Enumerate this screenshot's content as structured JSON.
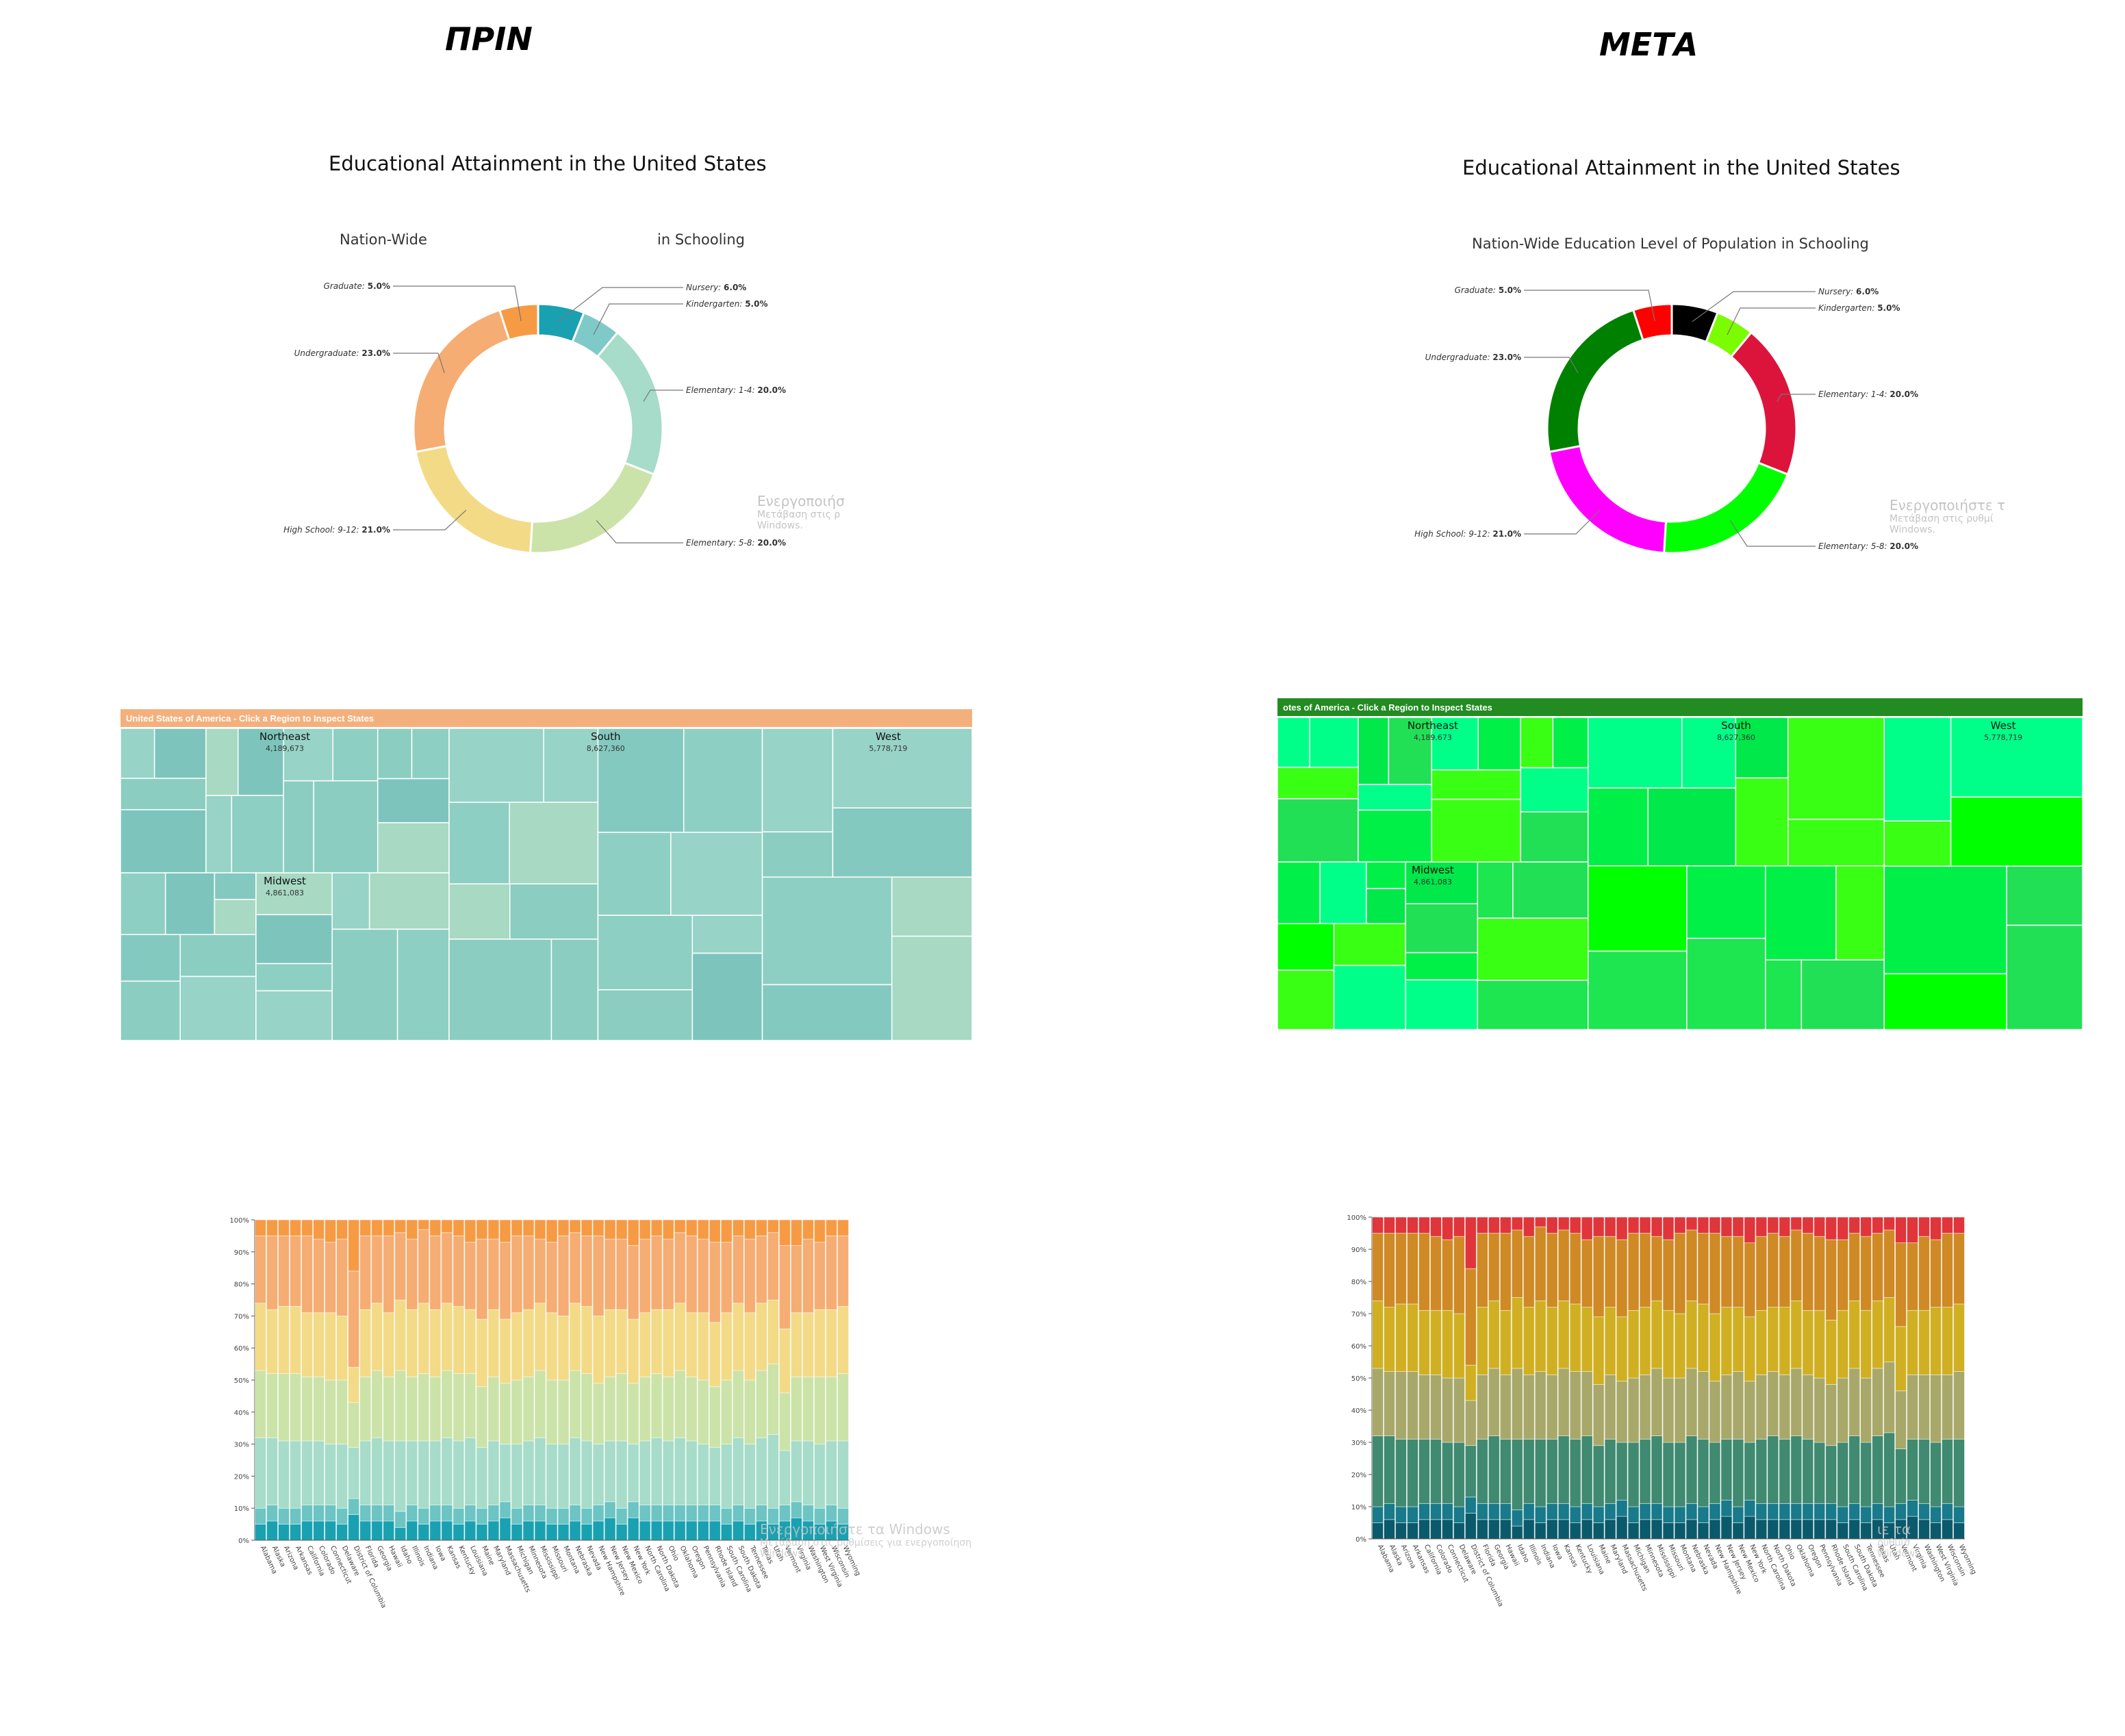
{
  "panels": [
    {
      "id": "before",
      "label": "ΠΡΙΝ",
      "donut": {
        "title": "Educational Attainment in the United States",
        "subtitle_left": "Nation-Wide",
        "subtitle_right": "in Schooling"
      },
      "watermark": {
        "line1": "Ενεργοποιήσ",
        "line2": "Μετάβαση στις ρ",
        "line3": "Windows."
      },
      "treemap": {
        "header": "United States of America - Click a Region to Inspect States",
        "header_color": "#f4b07c"
      },
      "stacked": {
        "watermark": {
          "line1": "Ενεργοποιήστε τα Windows",
          "line2": "Μετάβαση στις ρυθμίσεις για ενεργοποίηση",
          "line3": "Windows."
        }
      },
      "colors": {
        "nursery": "#1aa1b1",
        "kindergarten": "#7fcac8",
        "elementary14": "#a6dcc9",
        "elementary58": "#cbe3a8",
        "highschool": "#f3da87",
        "undergraduate": "#f5ad73",
        "graduate": "#f69b44"
      }
    },
    {
      "id": "after",
      "label": "ΜΕΤΑ",
      "donut": {
        "title": "Educational Attainment in the United States",
        "subtitle": "Nation-Wide Education Level of Population in Schooling"
      },
      "watermark": {
        "line1": "Ενεργοποιήστε τ",
        "line2": "Μετάβαση στις ρυθμί",
        "line3": "Windows."
      },
      "treemap": {
        "header": "otes of America - Click a Region to Inspect States",
        "header_color": "#228b22"
      },
      "stacked": {
        "watermark": {
          "line1": "ιε τα",
          "line2": "ρυθμίσ",
          "line3": "Windows."
        }
      },
      "colors": {
        "nursery": "#000000",
        "kindergarten": "#7cfc00",
        "elementary14": "#dc143c",
        "elementary58": "#00ff00",
        "highschool": "#ff00ff",
        "undergraduate": "#008000",
        "graduate": "#ff0000"
      }
    }
  ],
  "chart_data": [
    {
      "type": "pie",
      "title": "Educational Attainment in the United States",
      "subtitle": "Nation-Wide Education Level of Population in Schooling",
      "slices": [
        {
          "label": "Nursery",
          "value": 6.0,
          "display": "6.0%"
        },
        {
          "label": "Kindergarten",
          "value": 5.0,
          "display": "5.0%"
        },
        {
          "label": "Elementary: 1-4",
          "value": 20.0,
          "display": "20.0%"
        },
        {
          "label": "Elementary: 5-8",
          "value": 20.0,
          "display": "20.0%"
        },
        {
          "label": "High School: 9-12",
          "value": 21.0,
          "display": "21.0%"
        },
        {
          "label": "Undergraduate",
          "value": 23.0,
          "display": "23.0%"
        },
        {
          "label": "Graduate",
          "value": 5.0,
          "display": "5.0%"
        }
      ]
    },
    {
      "type": "treemap",
      "header": "United States of America - Click a Region to Inspect States",
      "regions": [
        {
          "name": "Northeast",
          "value": 4189673,
          "display": "4,189,673"
        },
        {
          "name": "Midwest",
          "value": 4861083,
          "display": "4,861,083"
        },
        {
          "name": "South",
          "value": 8627360,
          "display": "8,627,360"
        },
        {
          "name": "West",
          "value": 5778719,
          "display": "5,778,719"
        }
      ]
    },
    {
      "type": "bar",
      "stacked": true,
      "normalized": true,
      "ylim": [
        0,
        100
      ],
      "yticks": [
        "0%",
        "10%",
        "20%",
        "30%",
        "40%",
        "50%",
        "60%",
        "70%",
        "80%",
        "90%",
        "100%"
      ],
      "categories": [
        "Alabama",
        "Alaska",
        "Arizona",
        "Arkansas",
        "California",
        "Colorado",
        "Connecticut",
        "Delaware",
        "District of Columbia",
        "Florida",
        "Georgia",
        "Hawaii",
        "Idaho",
        "Illinois",
        "Indiana",
        "Iowa",
        "Kansas",
        "Kentucky",
        "Louisiana",
        "Maine",
        "Maryland",
        "Massachusetts",
        "Michigan",
        "Minnesota",
        "Mississippi",
        "Missouri",
        "Montana",
        "Nebraska",
        "Nevada",
        "New Hampshire",
        "New Jersey",
        "New Mexico",
        "New York",
        "North Carolina",
        "North Dakota",
        "Ohio",
        "Oklahoma",
        "Oregon",
        "Pennsylvania",
        "Rhode Island",
        "South Carolina",
        "South Dakota",
        "Tennessee",
        "Texas",
        "Utah",
        "Vermont",
        "Virginia",
        "Washington",
        "West Virginia",
        "Wisconsin",
        "Wyoming"
      ],
      "series_note": "cumulative boundaries (%) per state: nursery, +kindergarten, +elementary 1-4, +elementary 5-8, +high school, +undergraduate; remainder is graduate",
      "series": [
        {
          "name": "Nursery",
          "values": [
            5,
            6,
            5,
            5,
            6,
            6,
            6,
            5,
            8,
            6,
            6,
            6,
            4,
            6,
            5,
            6,
            6,
            5,
            6,
            5,
            6,
            7,
            5,
            6,
            6,
            5,
            5,
            6,
            5,
            6,
            7,
            5,
            7,
            6,
            6,
            6,
            6,
            6,
            6,
            6,
            5,
            6,
            5,
            6,
            5,
            6,
            7,
            6,
            5,
            6,
            5
          ]
        },
        {
          "name": "Kindergarten",
          "values": [
            5,
            5,
            5,
            5,
            5,
            5,
            5,
            5,
            5,
            5,
            5,
            5,
            5,
            5,
            5,
            5,
            5,
            5,
            5,
            5,
            5,
            5,
            5,
            5,
            5,
            5,
            5,
            5,
            5,
            5,
            5,
            5,
            5,
            5,
            5,
            5,
            5,
            5,
            5,
            5,
            5,
            5,
            5,
            5,
            5,
            5,
            5,
            5,
            5,
            5,
            5
          ]
        },
        {
          "name": "Elementary: 1-4",
          "values": [
            22,
            21,
            21,
            21,
            20,
            20,
            19,
            20,
            16,
            20,
            21,
            20,
            22,
            20,
            21,
            20,
            21,
            21,
            21,
            19,
            20,
            18,
            20,
            20,
            21,
            20,
            20,
            21,
            21,
            19,
            19,
            21,
            18,
            20,
            21,
            20,
            21,
            20,
            19,
            18,
            20,
            21,
            20,
            21,
            23,
            17,
            19,
            20,
            20,
            20,
            21
          ]
        },
        {
          "name": "Elementary: 5-8",
          "values": [
            21,
            20,
            21,
            21,
            20,
            20,
            20,
            20,
            14,
            20,
            21,
            20,
            22,
            20,
            21,
            20,
            21,
            21,
            20,
            19,
            20,
            19,
            20,
            20,
            21,
            20,
            20,
            21,
            21,
            19,
            20,
            21,
            19,
            20,
            20,
            20,
            21,
            20,
            20,
            19,
            20,
            21,
            20,
            21,
            22,
            18,
            20,
            20,
            21,
            20,
            21
          ]
        },
        {
          "name": "High School: 9-12",
          "values": [
            21,
            20,
            21,
            21,
            20,
            20,
            21,
            20,
            11,
            21,
            21,
            20,
            22,
            21,
            22,
            21,
            21,
            21,
            20,
            21,
            21,
            20,
            21,
            21,
            21,
            21,
            20,
            21,
            21,
            21,
            21,
            20,
            20,
            20,
            20,
            21,
            21,
            20,
            21,
            20,
            21,
            21,
            21,
            21,
            20,
            20,
            20,
            20,
            21,
            21,
            21
          ]
        },
        {
          "name": "Undergraduate",
          "values": [
            21,
            23,
            22,
            22,
            24,
            23,
            22,
            24,
            30,
            23,
            21,
            24,
            21,
            22,
            23,
            23,
            22,
            22,
            21,
            25,
            22,
            24,
            24,
            23,
            20,
            22,
            25,
            22,
            22,
            25,
            22,
            22,
            23,
            23,
            23,
            22,
            22,
            24,
            23,
            25,
            22,
            21,
            23,
            21,
            21,
            26,
            21,
            23,
            21,
            23,
            22
          ]
        },
        {
          "name": "Graduate",
          "values": [
            5,
            5,
            5,
            5,
            5,
            6,
            7,
            6,
            16,
            5,
            5,
            5,
            4,
            6,
            3,
            5,
            4,
            5,
            7,
            6,
            6,
            7,
            5,
            5,
            6,
            7,
            5,
            4,
            5,
            5,
            6,
            6,
            8,
            6,
            5,
            6,
            4,
            5,
            6,
            7,
            7,
            5,
            6,
            5,
            4,
            8,
            8,
            6,
            7,
            5,
            5
          ]
        }
      ]
    }
  ]
}
